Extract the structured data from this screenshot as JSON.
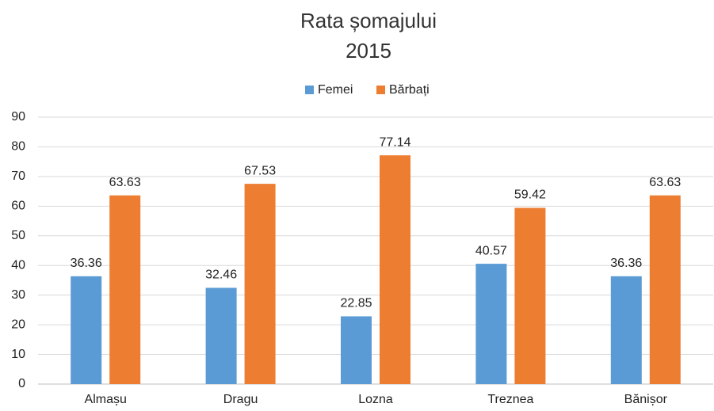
{
  "chart_data": {
    "type": "bar",
    "title": "Rata șomajului",
    "subtitle": "2015",
    "categories": [
      "Almașu",
      "Dragu",
      "Lozna",
      "Treznea",
      "Bănișor"
    ],
    "series": [
      {
        "name": "Femei",
        "color": "#5b9bd5",
        "values": [
          36.36,
          32.46,
          22.85,
          40.57,
          36.36
        ]
      },
      {
        "name": "Bărbați",
        "color": "#ed7d31",
        "values": [
          63.63,
          67.53,
          77.14,
          59.42,
          63.63
        ]
      }
    ],
    "ylim": [
      0,
      90
    ],
    "yticks": [
      0,
      10,
      20,
      30,
      40,
      50,
      60,
      70,
      80,
      90
    ],
    "grid": true,
    "legend": "top"
  }
}
